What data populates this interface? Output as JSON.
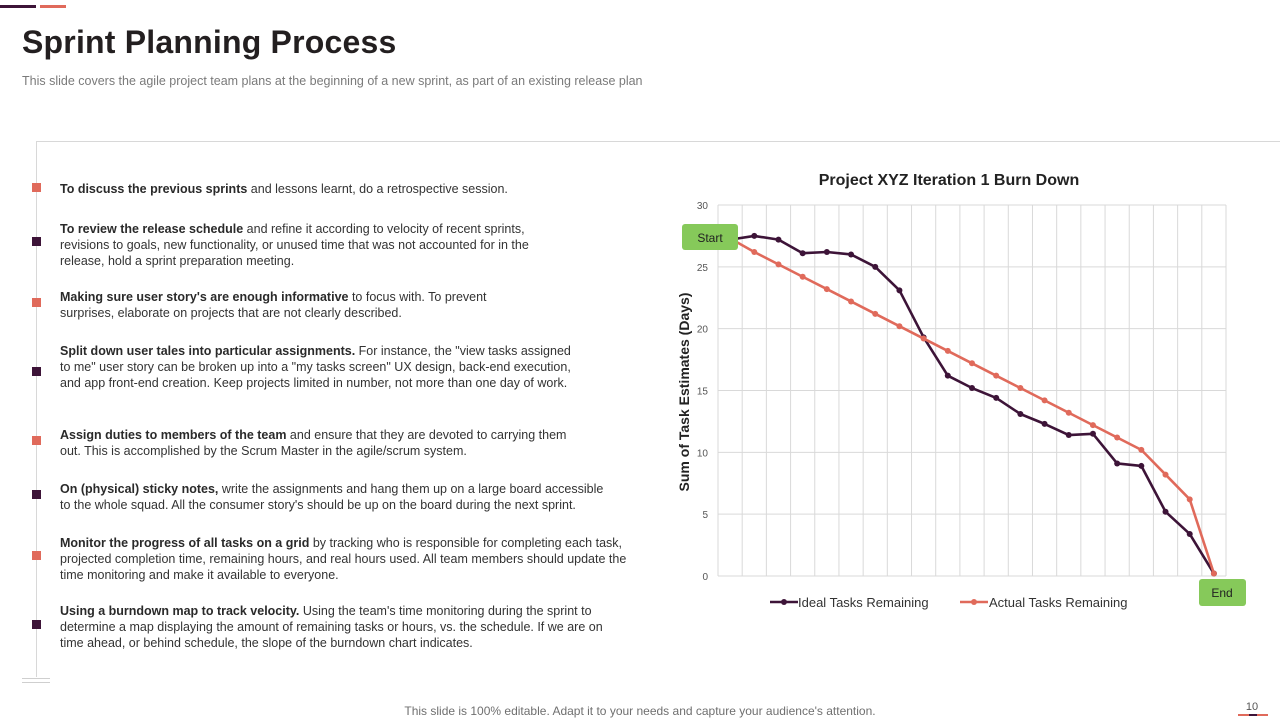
{
  "colors": {
    "dark": "#3d1438",
    "coral": "#e06a5b",
    "start_badge": "#86c95a"
  },
  "header": {
    "title": "Sprint Planning Process",
    "subtitle": "This slide covers the agile project team plans at the beginning of a new sprint, as part of an existing release plan"
  },
  "points": [
    {
      "bold": "To discuss  the previous sprints",
      "rest": " and lessons learnt, do a retrospective session.",
      "color": "coral"
    },
    {
      "bold": "To review the release schedule",
      "rest": " and refine it according to velocity of recent sprints, revisions to goals, new functionality, or unused time that was not accounted for in the release, hold a sprint preparation meeting.",
      "color": "dark"
    },
    {
      "bold": "Making sure user story's  are enough informative",
      "rest": " to focus with. To prevent surprises, elaborate on projects that are not clearly described.",
      "color": "coral"
    },
    {
      "bold": "Split down user tales into particular assignments.",
      "rest": " For instance, the \"view tasks assigned to me\" user story can be broken up into a \"my tasks screen\" UX design, back-end execution, and app front-end creation. Keep projects limited in number, not more than one day of work.",
      "color": "dark"
    },
    {
      "bold": "Assign  duties to members of the team",
      "rest": " and ensure that they are devoted to carrying them out. This is accomplished by the Scrum Master in the agile/scrum system.",
      "color": "coral"
    },
    {
      "bold": "On (physical) sticky notes,",
      "rest": " write the assignments and hang them up on a large board accessible to the whole squad. All the consumer story's should be up on the board during the next sprint.",
      "color": "dark"
    },
    {
      "bold": "Monitor the progress  of all tasks  on a grid",
      "rest": " by tracking who is responsible for completing each task, projected completion time, remaining hours, and real hours used. All team members should update the time monitoring and make it available to everyone.",
      "color": "coral"
    },
    {
      "bold": "Using  a burndown map to track velocity.",
      "rest": " Using the team's time monitoring during the sprint to determine a map displaying the amount of remaining tasks or hours, vs. the schedule. If we are on time ahead, or behind schedule, the slope of the burndown  chart indicates.",
      "color": "dark"
    }
  ],
  "chart_data": {
    "type": "line",
    "title": "Project XYZ Iteration 1 Burn Down",
    "ylabel": "Sum of Task Estimates (Days)",
    "xlabel": "",
    "ylim": [
      0,
      30
    ],
    "yticks": [
      0,
      5,
      10,
      15,
      20,
      25,
      30
    ],
    "x_count": 21,
    "grid": true,
    "legend": "bottom",
    "series": [
      {
        "name": "Ideal Tasks Remaining",
        "color": "#3d1438",
        "values": [
          27.2,
          27.5,
          27.2,
          26.1,
          26.2,
          26.0,
          25.0,
          23.1,
          19.3,
          16.2,
          15.2,
          14.4,
          13.1,
          12.3,
          11.4,
          11.5,
          9.1,
          8.9,
          5.2,
          3.4,
          0.2
        ]
      },
      {
        "name": "Actual Tasks Remaining",
        "color": "#e06a5b",
        "values": [
          27.3,
          26.2,
          25.2,
          24.2,
          23.2,
          22.2,
          21.2,
          20.2,
          19.2,
          18.2,
          17.2,
          16.2,
          15.2,
          14.2,
          13.2,
          12.2,
          11.2,
          10.2,
          8.2,
          6.2,
          0.2
        ]
      }
    ],
    "annotations": {
      "start": "Start",
      "end": "End"
    }
  },
  "footer": {
    "text": "This slide is 100% editable. Adapt it to your needs and capture your audience's attention.",
    "page": "10"
  }
}
